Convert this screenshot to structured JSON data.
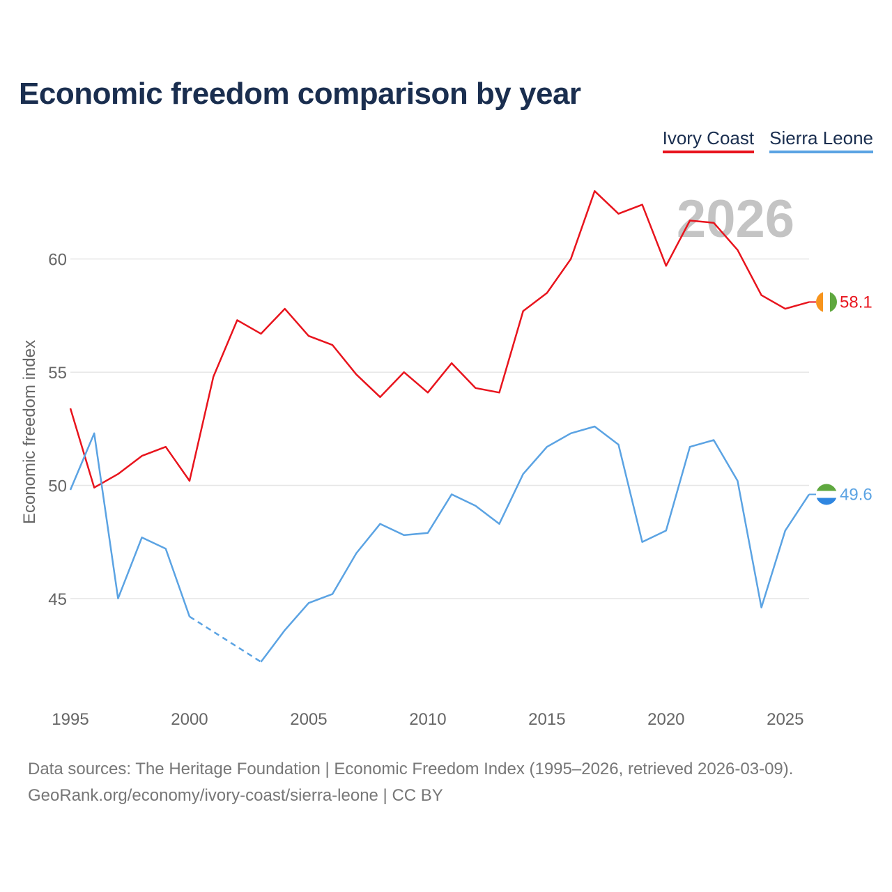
{
  "title": "Economic freedom comparison by year",
  "year_label": "2026",
  "legend": {
    "ivory": "Ivory Coast",
    "sierra": "Sierra Leone"
  },
  "colors": {
    "ivory": "#e8141d",
    "sierra": "#5ba3e3",
    "title": "#1a2e4f"
  },
  "footer": {
    "line1": "Data sources: The Heritage Foundation | Economic Freedom Index (1995–2026, retrieved 2026-03-09).",
    "line2": "GeoRank.org/economy/ivory-coast/sierra-leone | CC BY"
  },
  "chart_data": {
    "type": "line",
    "title": "Economic freedom comparison by year",
    "xlabel": "",
    "ylabel": "Economic freedom index",
    "xlim": [
      1995,
      2026
    ],
    "ylim": [
      40.5,
      63.5
    ],
    "x_ticks": [
      1995,
      2000,
      2005,
      2010,
      2015,
      2020,
      2025
    ],
    "y_ticks": [
      45,
      50,
      55,
      60
    ],
    "grid": true,
    "legend_position": "top-right",
    "series": [
      {
        "key": "ivory",
        "name": "Ivory Coast",
        "end_label": "58.1",
        "points": [
          [
            1995,
            53.4
          ],
          [
            1996,
            49.9
          ],
          [
            1997,
            50.5
          ],
          [
            1998,
            51.3
          ],
          [
            1999,
            51.7
          ],
          [
            2000,
            50.2
          ],
          [
            2001,
            54.8
          ],
          [
            2002,
            57.3
          ],
          [
            2003,
            56.7
          ],
          [
            2004,
            57.8
          ],
          [
            2005,
            56.6
          ],
          [
            2006,
            56.2
          ],
          [
            2007,
            54.9
          ],
          [
            2008,
            53.9
          ],
          [
            2009,
            55.0
          ],
          [
            2010,
            54.1
          ],
          [
            2011,
            55.4
          ],
          [
            2012,
            54.3
          ],
          [
            2013,
            54.1
          ],
          [
            2014,
            57.7
          ],
          [
            2015,
            58.5
          ],
          [
            2016,
            60.0
          ],
          [
            2017,
            63.0
          ],
          [
            2018,
            62.0
          ],
          [
            2019,
            62.4
          ],
          [
            2020,
            59.7
          ],
          [
            2021,
            61.7
          ],
          [
            2022,
            61.6
          ],
          [
            2023,
            60.4
          ],
          [
            2024,
            58.4
          ],
          [
            2025,
            57.8
          ],
          [
            2026,
            58.1
          ]
        ]
      },
      {
        "key": "sierra",
        "name": "Sierra Leone",
        "end_label": "49.6",
        "gap": {
          "from": 2000,
          "to": 2003
        },
        "points": [
          [
            1995,
            49.8
          ],
          [
            1996,
            52.3
          ],
          [
            1997,
            45.0
          ],
          [
            1998,
            47.7
          ],
          [
            1999,
            47.2
          ],
          [
            2000,
            44.2
          ],
          [
            2003,
            42.2
          ],
          [
            2004,
            43.6
          ],
          [
            2005,
            44.8
          ],
          [
            2006,
            45.2
          ],
          [
            2007,
            47.0
          ],
          [
            2008,
            48.3
          ],
          [
            2009,
            47.8
          ],
          [
            2010,
            47.9
          ],
          [
            2011,
            49.6
          ],
          [
            2012,
            49.1
          ],
          [
            2013,
            48.3
          ],
          [
            2014,
            50.5
          ],
          [
            2015,
            51.7
          ],
          [
            2016,
            52.3
          ],
          [
            2017,
            52.6
          ],
          [
            2018,
            51.8
          ],
          [
            2019,
            47.5
          ],
          [
            2020,
            48.0
          ],
          [
            2021,
            51.7
          ],
          [
            2022,
            52.0
          ],
          [
            2023,
            50.2
          ],
          [
            2024,
            44.6
          ],
          [
            2025,
            48.0
          ],
          [
            2026,
            49.6
          ]
        ]
      }
    ]
  }
}
